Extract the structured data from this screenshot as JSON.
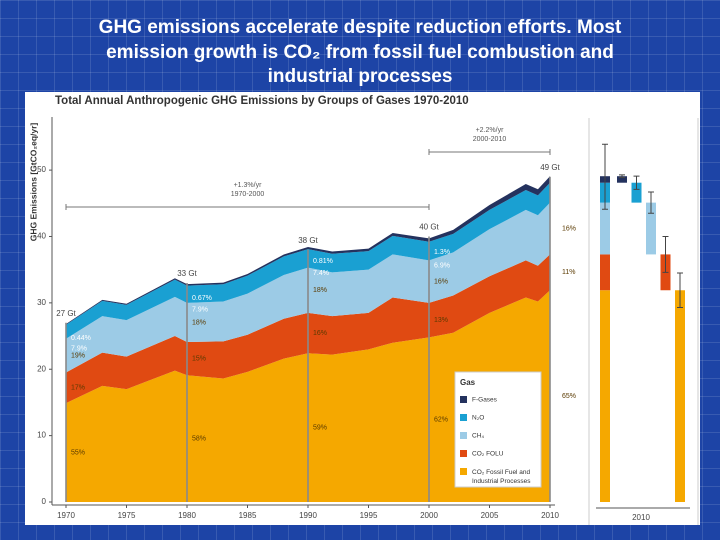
{
  "slide_title": [
    "GHG emissions accelerate despite reduction efforts. Most",
    "emission growth is CO₂ from fossil fuel combustion and",
    "industrial processes"
  ],
  "chart_data": {
    "type": "stacked-area",
    "title": "Total Annual Anthropogenic GHG Emissions by Groups of Gases 1970-2010",
    "y_label": "GHG Emissions [GtCO₂eq/yr]",
    "x": [
      1970,
      1973,
      1975,
      1979,
      1980,
      1983,
      1985,
      1988,
      1990,
      1992,
      1995,
      1997,
      2000,
      2002,
      2005,
      2008,
      2009,
      2010
    ],
    "xlim": [
      1970,
      2010
    ],
    "xticks": [
      1970,
      1975,
      1980,
      1985,
      1990,
      1995,
      2000,
      2005,
      2010
    ],
    "ylim": [
      0,
      58
    ],
    "yticks": [
      0,
      10,
      20,
      30,
      40,
      50
    ],
    "legend_title": "Gas",
    "series": [
      {
        "name": "CO₂ Fossil Fuel and Industrial Processes",
        "color": "#f5a800",
        "values": [
          14.9,
          17.5,
          17.0,
          19.8,
          19.1,
          18.6,
          19.6,
          21.6,
          22.4,
          22.2,
          23.0,
          24.0,
          24.8,
          25.5,
          28.5,
          30.8,
          30.2,
          31.9
        ],
        "share_labels": [
          "55%",
          "58%",
          "59%",
          "62%",
          "65%"
        ],
        "uncertainty_2010": 2.6
      },
      {
        "name": "CO₂ FOLU",
        "color": "#e04a12",
        "values": [
          4.6,
          5.0,
          4.9,
          5.2,
          5.0,
          5.6,
          5.6,
          6.0,
          6.1,
          5.8,
          5.5,
          6.8,
          5.2,
          5.6,
          5.5,
          5.6,
          5.4,
          5.4
        ],
        "share_labels": [
          "17%",
          "15%",
          "16%",
          "13%",
          "11%"
        ],
        "uncertainty_2010": 2.7
      },
      {
        "name": "CH₄",
        "color": "#9ccbe6",
        "values": [
          5.1,
          5.5,
          5.5,
          5.9,
          5.9,
          6.0,
          6.2,
          6.6,
          6.8,
          6.6,
          6.5,
          6.5,
          6.4,
          6.5,
          7.1,
          7.6,
          7.6,
          7.8
        ],
        "share_labels": [
          "19%",
          "18%",
          "18%",
          "16%",
          "16%"
        ],
        "uncertainty_2010": 1.6
      },
      {
        "name": "N₂O",
        "color": "#1aa0d2",
        "values": [
          2.1,
          2.3,
          2.3,
          2.6,
          2.6,
          2.6,
          2.7,
          2.8,
          2.8,
          2.8,
          2.8,
          2.8,
          2.8,
          2.8,
          2.9,
          3.0,
          3.0,
          3.0
        ],
        "share_labels": [
          "7.9%",
          "7.9%",
          "7.4%",
          "6.9%",
          "6.2%"
        ],
        "uncertainty_2010": 1.0
      },
      {
        "name": "F-Gases",
        "color": "#24325e",
        "values": [
          0.12,
          0.15,
          0.16,
          0.2,
          0.22,
          0.24,
          0.25,
          0.29,
          0.31,
          0.33,
          0.38,
          0.43,
          0.52,
          0.6,
          0.75,
          0.9,
          0.92,
          0.98
        ],
        "share_labels": [
          "0.44%",
          "0.67%",
          "0.81%",
          "1.3%",
          "2.0%"
        ],
        "uncertainty_2010": 0.2
      }
    ],
    "key_years": [
      1970,
      1980,
      1990,
      2000,
      2010
    ],
    "totals": {
      "values": [
        27,
        33,
        38,
        40,
        49
      ],
      "value_labels": [
        "27 Gt",
        "33 Gt",
        "38 Gt",
        "40 Gt",
        "49 Gt"
      ],
      "uncertainty_2010": 4.9
    },
    "annotations": [
      {
        "rate": "+1.3%/yr",
        "period": "1970-2000"
      },
      {
        "rate": "+2.2%/yr",
        "period": "2000-2010"
      }
    ]
  }
}
